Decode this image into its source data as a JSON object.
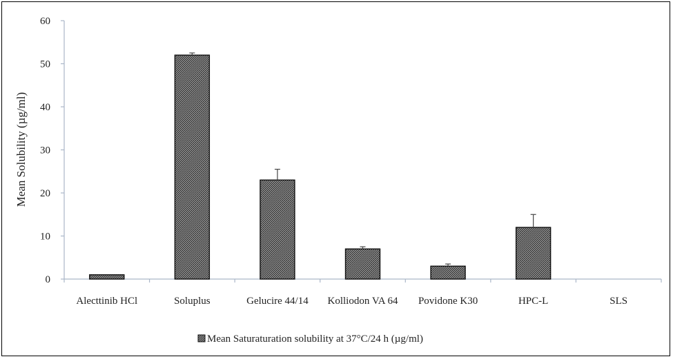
{
  "chart_data": {
    "type": "bar",
    "title": "",
    "xlabel": "",
    "ylabel": "Mean Solubility (µg/ml)",
    "ylim": [
      0,
      60
    ],
    "yticks": [
      "0",
      "10",
      "20",
      "30",
      "40",
      "50",
      "60"
    ],
    "categories": [
      "Alecttinib HCl",
      "Soluplus",
      "Gelucire 44/14",
      "Kolliodon VA 64",
      "Povidone K30",
      "HPC-L",
      "SLS"
    ],
    "series": [
      {
        "name": "Mean Saturaturation solubility at 37°C/24 h (µg/ml)",
        "values": [
          1,
          52,
          23,
          7,
          3,
          12,
          0
        ],
        "error": [
          0,
          0.5,
          2.5,
          0.5,
          0.5,
          3,
          0
        ]
      }
    ],
    "grid": false,
    "legend_position": "bottom"
  },
  "colors": {
    "bar_fill": "#6b6b6b",
    "bar_stroke": "#111111",
    "axis": "#aab6c8"
  }
}
